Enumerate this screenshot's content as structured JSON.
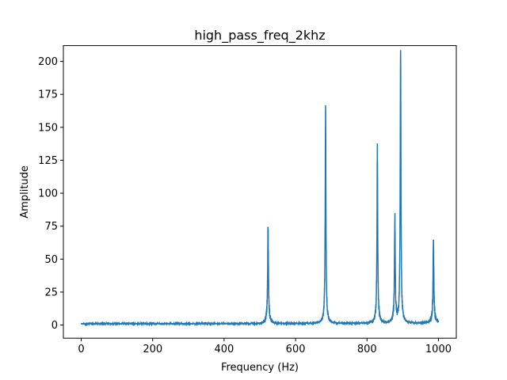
{
  "chart_data": {
    "type": "line",
    "title": "high_pass_freq_2khz",
    "xlabel": "Frequency (Hz)",
    "ylabel": "Amplitude",
    "xlim": [
      -50,
      1050
    ],
    "ylim": [
      -10,
      212
    ],
    "xticks": [
      0,
      200,
      400,
      600,
      800,
      1000
    ],
    "yticks": [
      0,
      25,
      50,
      75,
      100,
      125,
      150,
      175,
      200
    ],
    "grid": false,
    "color": "#1f77b4",
    "noise_floor": 1.0,
    "peaks": [
      {
        "freq": 523,
        "amplitude": 69.5
      },
      {
        "freq": 684,
        "amplitude": 155
      },
      {
        "freq": 829,
        "amplitude": 125.5
      },
      {
        "freq": 878,
        "amplitude": 72.5
      },
      {
        "freq": 894,
        "amplitude": 202
      },
      {
        "freq": 986,
        "amplitude": 59
      }
    ],
    "x_range": [
      0,
      1000
    ]
  }
}
